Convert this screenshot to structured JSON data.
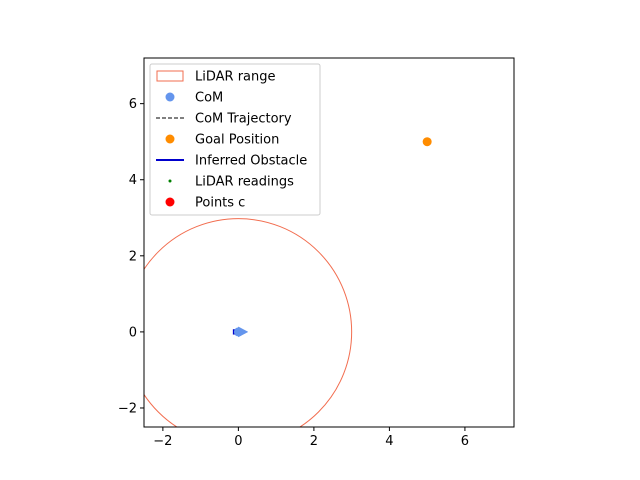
{
  "chart_data": {
    "type": "scatter",
    "title": "",
    "xlabel": "",
    "ylabel": "",
    "xlim": [
      -2.5,
      7.3
    ],
    "ylim": [
      -2.5,
      7.2
    ],
    "aspect": "equal",
    "grid": false,
    "legend_position": "upper-left",
    "x_ticks": [
      {
        "value": -2,
        "label": "−2"
      },
      {
        "value": 0,
        "label": "0"
      },
      {
        "value": 2,
        "label": "2"
      },
      {
        "value": 4,
        "label": "4"
      },
      {
        "value": 6,
        "label": "6"
      }
    ],
    "y_ticks": [
      {
        "value": -2,
        "label": "−2"
      },
      {
        "value": 0,
        "label": "0"
      },
      {
        "value": 2,
        "label": "2"
      },
      {
        "value": 4,
        "label": "4"
      },
      {
        "value": 6,
        "label": "6"
      }
    ],
    "lidar_range": {
      "center": [
        0,
        0
      ],
      "radius": 3,
      "color": "#f26d4f"
    },
    "com": {
      "x": 0,
      "y": 0,
      "color": "#6495ed"
    },
    "heading_arrow": {
      "x": 0,
      "y": 0,
      "dx": 0.25,
      "dy": 0,
      "color": "#6495ed"
    },
    "com_trajectory": {
      "points": [
        [
          -0.12,
          0
        ],
        [
          0,
          0
        ]
      ],
      "color": "#000000"
    },
    "goal": {
      "x": 5,
      "y": 5,
      "color": "#ff8c00"
    },
    "inferred_obstacle": {
      "points": [
        [
          -0.12,
          -0.07
        ],
        [
          -0.12,
          0.07
        ]
      ],
      "color": "#0000cd"
    },
    "lidar_readings": {
      "points": [],
      "color": "#008000"
    },
    "points_c": {
      "points": [],
      "color": "#ff0000"
    },
    "legend": [
      {
        "label": "LiDAR range",
        "marker": "patch",
        "color": "#f26d4f"
      },
      {
        "label": "CoM",
        "marker": "dot",
        "color": "#6495ed"
      },
      {
        "label": "CoM Trajectory",
        "marker": "dashed-line",
        "color": "#000000"
      },
      {
        "label": "Goal Position",
        "marker": "dot",
        "color": "#ff8c00"
      },
      {
        "label": "Inferred Obstacle",
        "marker": "line",
        "color": "#0000cd"
      },
      {
        "label": "LiDAR readings",
        "marker": "small-dot",
        "color": "#008000"
      },
      {
        "label": "Points c",
        "marker": "dot",
        "color": "#ff0000"
      }
    ]
  }
}
